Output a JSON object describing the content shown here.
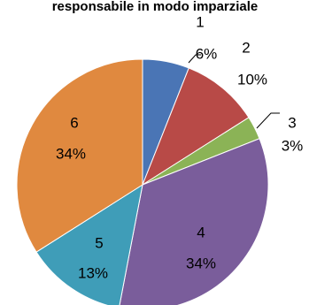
{
  "chart_data": {
    "type": "pie",
    "title": "responsabile in modo imparziale",
    "categories": [
      "1",
      "2",
      "3",
      "4",
      "5",
      "6"
    ],
    "values": [
      6,
      10,
      3,
      34,
      13,
      34
    ],
    "percent_labels": [
      "6%",
      "10%",
      "3%",
      "34%",
      "13%",
      "34%"
    ],
    "colors": [
      "#4A75B5",
      "#B84A47",
      "#8BB356",
      "#7A5D9B",
      "#3F9DB8",
      "#E0893F"
    ],
    "start_angle_deg": 0,
    "direction": "clockwise"
  }
}
